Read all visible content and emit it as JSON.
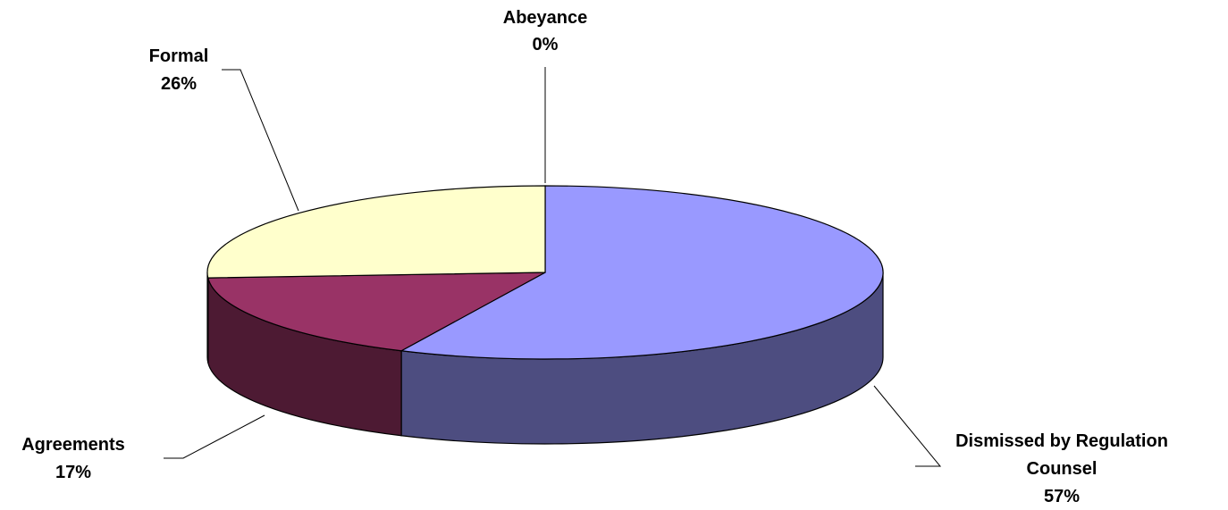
{
  "chart_data": {
    "type": "pie",
    "three_d": true,
    "title": "",
    "legend": "none",
    "slices": [
      {
        "label_lines": [
          "Dismissed by Regulation",
          "Counsel"
        ],
        "percent_label": "57%",
        "value": 57,
        "top_color": "#9999ff",
        "side_color": "#4d4d80"
      },
      {
        "label_lines": [
          "Agreements"
        ],
        "percent_label": "17%",
        "value": 17,
        "top_color": "#993366",
        "side_color": "#4d1a33"
      },
      {
        "label_lines": [
          "Formal"
        ],
        "percent_label": "26%",
        "value": 26,
        "top_color": "#ffffcc",
        "side_color": "#808066"
      },
      {
        "label_lines": [
          "Abeyance"
        ],
        "percent_label": "0%",
        "value": 0,
        "top_color": "#ccffff",
        "side_color": "#668080"
      }
    ]
  }
}
